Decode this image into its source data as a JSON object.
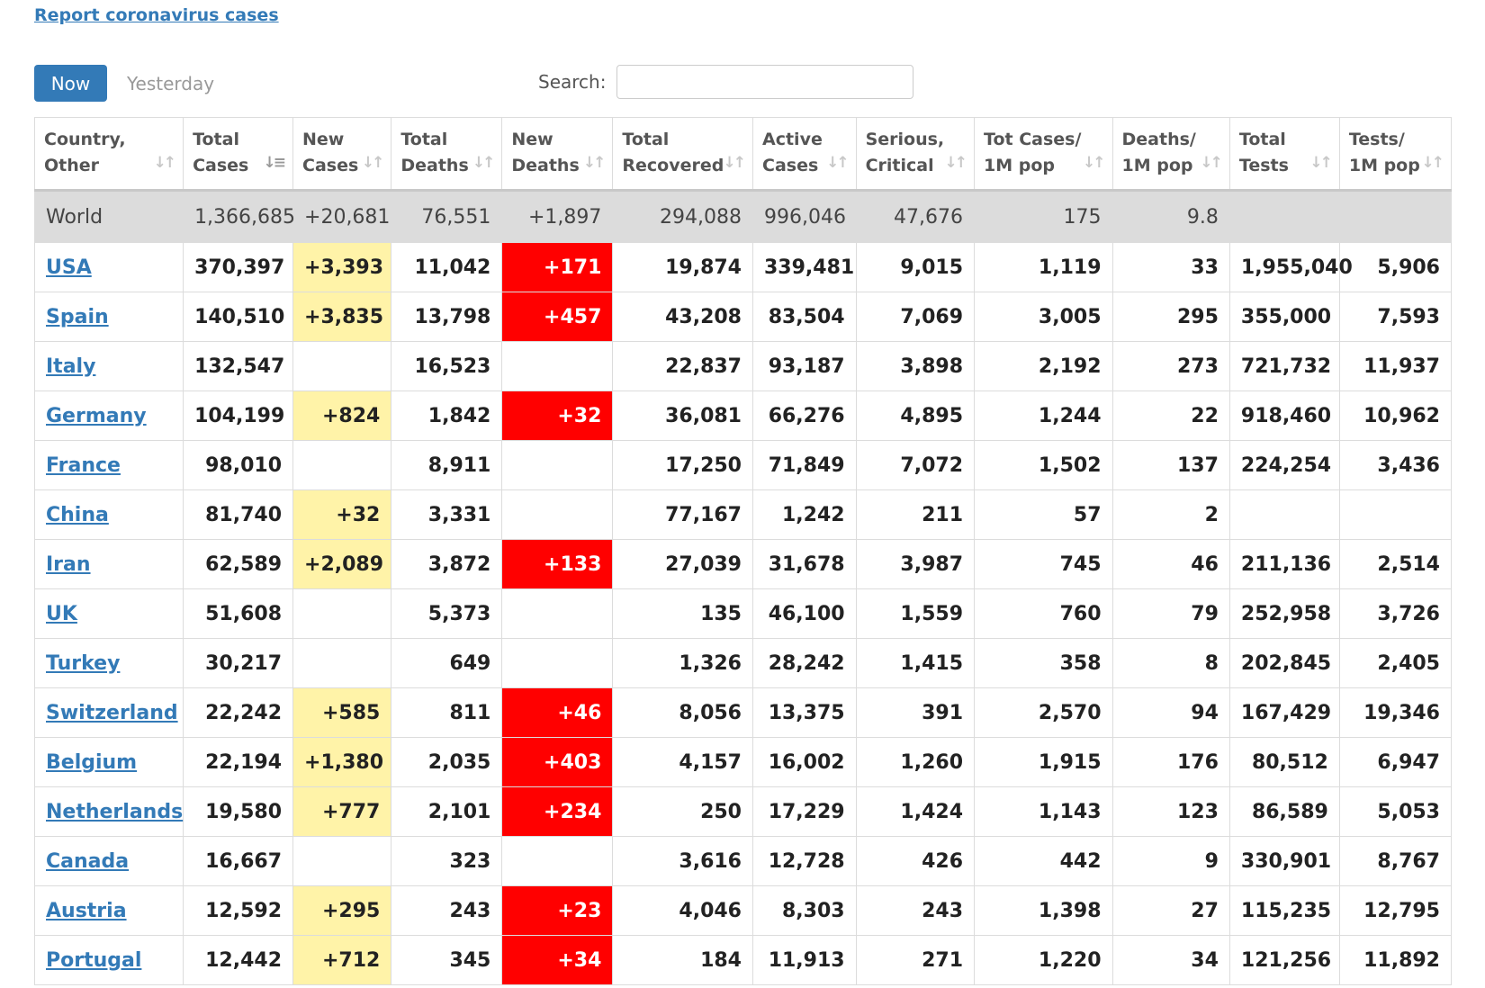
{
  "report_link": "Report coronavirus cases",
  "tabs": {
    "now": "Now",
    "yesterday": "Yesterday"
  },
  "search": {
    "label": "Search:",
    "value": ""
  },
  "colors": {
    "accent": "#337ab7",
    "new_cases_highlight": "#fff3a8",
    "new_deaths_highlight": "#ff0000",
    "world_row": "#dcdcdc"
  },
  "headers": [
    {
      "l1": "Country,",
      "l2": "Other"
    },
    {
      "l1": "Total",
      "l2": "Cases"
    },
    {
      "l1": "New",
      "l2": "Cases"
    },
    {
      "l1": "Total",
      "l2": "Deaths"
    },
    {
      "l1": "New",
      "l2": "Deaths"
    },
    {
      "l1": "Total",
      "l2": "Recovered"
    },
    {
      "l1": "Active",
      "l2": "Cases"
    },
    {
      "l1": "Serious,",
      "l2": "Critical"
    },
    {
      "l1": "Tot Cases/",
      "l2": "1M pop"
    },
    {
      "l1": "Deaths/",
      "l2": "1M pop"
    },
    {
      "l1": "Total",
      "l2": "Tests"
    },
    {
      "l1": "Tests/",
      "l2": "1M pop"
    }
  ],
  "world": [
    "World",
    "1,366,685",
    "+20,681",
    "76,551",
    "+1,897",
    "294,088",
    "996,046",
    "47,676",
    "175",
    "9.8",
    "",
    ""
  ],
  "rows": [
    [
      "USA",
      "370,397",
      "+3,393",
      "11,042",
      "+171",
      "19,874",
      "339,481",
      "9,015",
      "1,119",
      "33",
      "1,955,040",
      "5,906"
    ],
    [
      "Spain",
      "140,510",
      "+3,835",
      "13,798",
      "+457",
      "43,208",
      "83,504",
      "7,069",
      "3,005",
      "295",
      "355,000",
      "7,593"
    ],
    [
      "Italy",
      "132,547",
      "",
      "16,523",
      "",
      "22,837",
      "93,187",
      "3,898",
      "2,192",
      "273",
      "721,732",
      "11,937"
    ],
    [
      "Germany",
      "104,199",
      "+824",
      "1,842",
      "+32",
      "36,081",
      "66,276",
      "4,895",
      "1,244",
      "22",
      "918,460",
      "10,962"
    ],
    [
      "France",
      "98,010",
      "",
      "8,911",
      "",
      "17,250",
      "71,849",
      "7,072",
      "1,502",
      "137",
      "224,254",
      "3,436"
    ],
    [
      "China",
      "81,740",
      "+32",
      "3,331",
      "",
      "77,167",
      "1,242",
      "211",
      "57",
      "2",
      "",
      ""
    ],
    [
      "Iran",
      "62,589",
      "+2,089",
      "3,872",
      "+133",
      "27,039",
      "31,678",
      "3,987",
      "745",
      "46",
      "211,136",
      "2,514"
    ],
    [
      "UK",
      "51,608",
      "",
      "5,373",
      "",
      "135",
      "46,100",
      "1,559",
      "760",
      "79",
      "252,958",
      "3,726"
    ],
    [
      "Turkey",
      "30,217",
      "",
      "649",
      "",
      "1,326",
      "28,242",
      "1,415",
      "358",
      "8",
      "202,845",
      "2,405"
    ],
    [
      "Switzerland",
      "22,242",
      "+585",
      "811",
      "+46",
      "8,056",
      "13,375",
      "391",
      "2,570",
      "94",
      "167,429",
      "19,346"
    ],
    [
      "Belgium",
      "22,194",
      "+1,380",
      "2,035",
      "+403",
      "4,157",
      "16,002",
      "1,260",
      "1,915",
      "176",
      "80,512",
      "6,947"
    ],
    [
      "Netherlands",
      "19,580",
      "+777",
      "2,101",
      "+234",
      "250",
      "17,229",
      "1,424",
      "1,143",
      "123",
      "86,589",
      "5,053"
    ],
    [
      "Canada",
      "16,667",
      "",
      "323",
      "",
      "3,616",
      "12,728",
      "426",
      "442",
      "9",
      "330,901",
      "8,767"
    ],
    [
      "Austria",
      "12,592",
      "+295",
      "243",
      "+23",
      "4,046",
      "8,303",
      "243",
      "1,398",
      "27",
      "115,235",
      "12,795"
    ],
    [
      "Portugal",
      "12,442",
      "+712",
      "345",
      "+34",
      "184",
      "11,913",
      "271",
      "1,220",
      "34",
      "121,256",
      "11,892"
    ]
  ]
}
